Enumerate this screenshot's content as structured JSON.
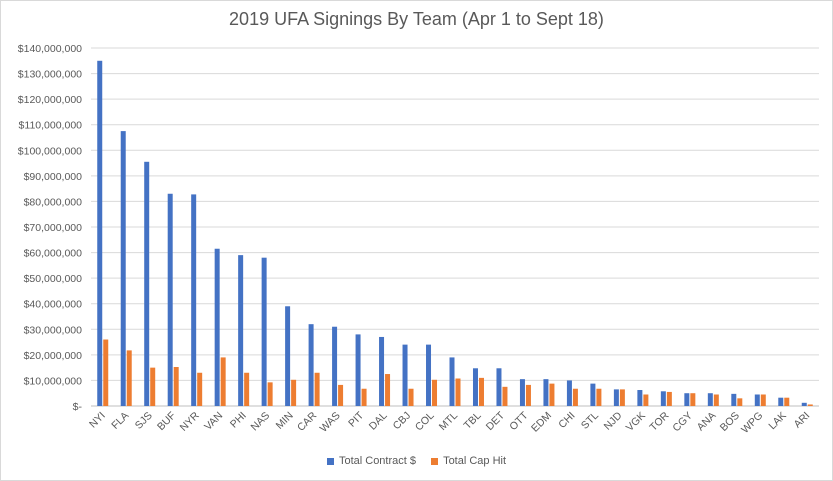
{
  "chart_data": {
    "type": "bar",
    "title": "2019 UFA Signings By Team (Apr 1 to Sept 18)",
    "xlabel": "",
    "ylabel": "",
    "ylim": [
      0,
      140000000
    ],
    "grid": true,
    "legend_position": "bottom",
    "y_ticks": [
      "$-",
      "$10,000,000",
      "$20,000,000",
      "$30,000,000",
      "$40,000,000",
      "$50,000,000",
      "$60,000,000",
      "$70,000,000",
      "$80,000,000",
      "$90,000,000",
      "$100,000,000",
      "$110,000,000",
      "$120,000,000",
      "$130,000,000",
      "$140,000,000"
    ],
    "categories": [
      "NYI",
      "FLA",
      "SJS",
      "BUF",
      "NYR",
      "VAN",
      "PHI",
      "NAS",
      "MIN",
      "CAR",
      "WAS",
      "PIT",
      "DAL",
      "CBJ",
      "COL",
      "MTL",
      "TBL",
      "DET",
      "OTT",
      "EDM",
      "CHI",
      "STL",
      "NJD",
      "VGK",
      "TOR",
      "CGY",
      "ANA",
      "BOS",
      "WPG",
      "LAK",
      "ARI"
    ],
    "series": [
      {
        "name": "Total Contract $",
        "color": "#4472c4",
        "values": [
          135000000,
          107500000,
          95500000,
          83000000,
          82750000,
          61500000,
          59000000,
          58000000,
          39000000,
          32000000,
          31000000,
          28000000,
          27000000,
          24000000,
          24000000,
          19000000,
          14750000,
          14750000,
          10500000,
          10500000,
          10000000,
          8750000,
          6500000,
          6250000,
          5750000,
          5000000,
          5000000,
          4750000,
          4500000,
          3250000,
          1250000
        ]
      },
      {
        "name": "Total Cap Hit",
        "color": "#ed7d31",
        "values": [
          26000000,
          21750000,
          15000000,
          15250000,
          13000000,
          19000000,
          13000000,
          9250000,
          10250000,
          13000000,
          8250000,
          6750000,
          12500000,
          6750000,
          10250000,
          10750000,
          11000000,
          7500000,
          8250000,
          8750000,
          6750000,
          6750000,
          6500000,
          4500000,
          5500000,
          5000000,
          4500000,
          3000000,
          4500000,
          3250000,
          600000
        ]
      }
    ]
  }
}
